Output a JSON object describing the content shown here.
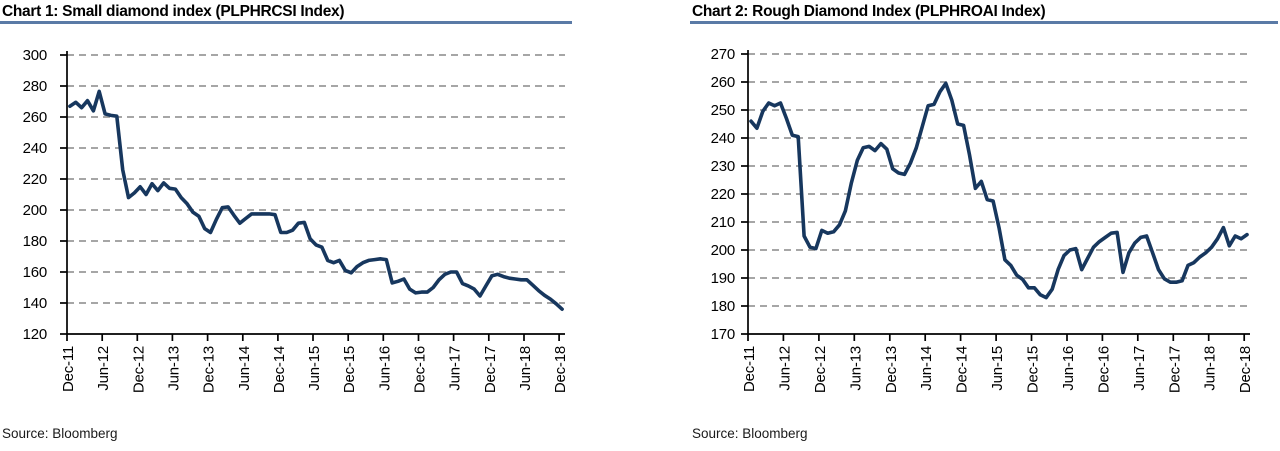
{
  "style": {
    "line_color": "#17375e",
    "grid_color": "#a6a6a6",
    "axis_color": "#000000",
    "rule_color": "#5a7aa6",
    "background": "#ffffff"
  },
  "chart_data": [
    {
      "type": "line",
      "title": "Chart 1: Small diamond index (PLPHRCSI Index)",
      "source": "Source: Bloomberg",
      "ylim": [
        120,
        300
      ],
      "ystep": 20,
      "grid": "dashed-horizontal",
      "legend_position": "none",
      "x_tick_labels": [
        "Dec-11",
        "Jun-12",
        "Dec-12",
        "Jun-13",
        "Dec-13",
        "Jun-14",
        "Dec-14",
        "Jun-15",
        "Dec-15",
        "Jun-16",
        "Dec-16",
        "Jun-17",
        "Dec-17",
        "Jun-18",
        "Dec-18"
      ],
      "x_frequency": "monthly",
      "series": [
        {
          "name": "PLPHRCSI Index",
          "values": [
            267,
            269.5,
            266,
            270.5,
            264,
            276.5,
            262,
            261,
            260.5,
            226,
            208,
            211,
            215,
            210,
            217,
            212.5,
            217.5,
            214,
            213.5,
            208,
            204,
            198.5,
            196,
            188,
            185.5,
            194,
            201.5,
            202,
            196.5,
            191.5,
            194.5,
            197.5,
            197.5,
            197.5,
            197.5,
            197,
            185.5,
            185.5,
            187,
            191.5,
            192,
            181.5,
            177.5,
            176,
            167.5,
            166,
            167.5,
            161,
            159.5,
            163.5,
            166,
            167.5,
            168,
            168.5,
            168,
            153,
            154,
            155.5,
            149,
            146.5,
            147,
            147,
            150,
            155,
            158.5,
            160,
            160,
            152.5,
            151,
            149,
            144.5,
            151,
            157.5,
            158.5,
            157,
            156,
            155.5,
            155,
            155,
            151.5,
            148,
            145,
            142.5,
            139.5,
            136
          ]
        }
      ]
    },
    {
      "type": "line",
      "title": "Chart 2: Rough Diamond Index (PLPHROAI Index)",
      "source": "Source: Bloomberg",
      "ylim": [
        170,
        270
      ],
      "ystep": 10,
      "grid": "dashed-horizontal",
      "legend_position": "none",
      "x_tick_labels": [
        "Dec-11",
        "Jun-12",
        "Dec-12",
        "Jun-13",
        "Dec-13",
        "Jun-14",
        "Dec-14",
        "Jun-15",
        "Dec-15",
        "Jun-16",
        "Dec-16",
        "Jun-17",
        "Dec-17",
        "Jun-18",
        "Dec-18"
      ],
      "x_frequency": "monthly",
      "series": [
        {
          "name": "PLPHROAI Index",
          "values": [
            246,
            243.5,
            249.5,
            252.5,
            251.5,
            252.5,
            247,
            241,
            240.5,
            205,
            201,
            200.5,
            207,
            206,
            206.5,
            209,
            214,
            224,
            232,
            236.5,
            237,
            235.5,
            238,
            236,
            229,
            227.5,
            227,
            231,
            236.5,
            244,
            251.5,
            252,
            256.5,
            259.5,
            253.5,
            245,
            244.5,
            234,
            222,
            224.5,
            218,
            217.5,
            208,
            196.5,
            194.5,
            191,
            189.5,
            186.5,
            186.5,
            184,
            183,
            186,
            193,
            198,
            200,
            200.5,
            193,
            197,
            201,
            203,
            204.5,
            206,
            206.3,
            192,
            199,
            202.5,
            204.5,
            205,
            199,
            193,
            189.7,
            188.5,
            188.5,
            189,
            194.5,
            195.5,
            197.5,
            199,
            201,
            204,
            208,
            201.5,
            205,
            204,
            205.5
          ]
        }
      ]
    }
  ]
}
